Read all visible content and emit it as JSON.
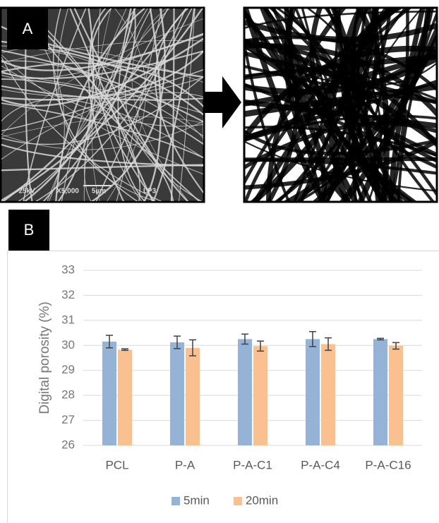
{
  "panels": {
    "a_label": "A",
    "b_label": "B",
    "sem_info": [
      "25kV",
      "X5,000",
      "5µm",
      "LP3"
    ]
  },
  "chart_data": {
    "type": "bar",
    "y_label": "Digital porosity (%)",
    "categories": [
      "PCL",
      "P-A",
      "P-A-C1",
      "P-A-C4",
      "P-A-C16"
    ],
    "series": [
      {
        "name": "5min",
        "color": "#95b3d7",
        "values": [
          30.15,
          30.12,
          30.25,
          30.25,
          30.25
        ],
        "errors": [
          0.25,
          0.25,
          0.2,
          0.3,
          0.03
        ]
      },
      {
        "name": "20min",
        "color": "#fac090",
        "values": [
          29.83,
          29.9,
          29.97,
          30.05,
          29.98
        ],
        "errors": [
          0.03,
          0.32,
          0.2,
          0.25,
          0.13
        ]
      }
    ],
    "ylim": [
      26,
      33
    ],
    "yticks": [
      26,
      27,
      28,
      29,
      30,
      31,
      32,
      33
    ],
    "grid": true,
    "legend": "bottom"
  }
}
